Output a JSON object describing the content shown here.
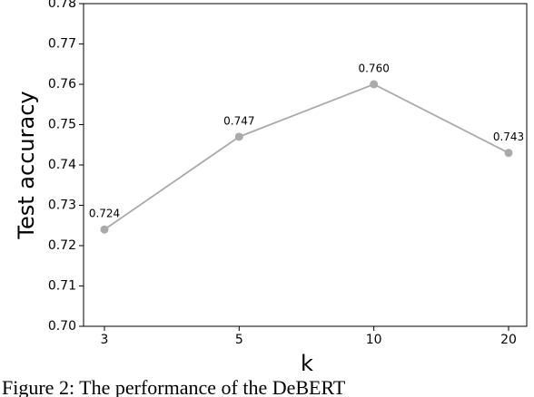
{
  "chart_data": {
    "type": "line",
    "y_label": "Test accuracy",
    "x_label": "k",
    "caption": "Figure 2: The performance of the DeBERT",
    "categories": [
      "3",
      "5",
      "10",
      "20"
    ],
    "values": [
      0.724,
      0.747,
      0.76,
      0.743
    ],
    "value_labels": [
      "0.724",
      "0.747",
      "0.760",
      "0.743"
    ],
    "color": "#aaaaaa",
    "ylim": [
      0.7,
      0.78
    ],
    "yticks": [
      {
        "value": 0.7,
        "label": "0.70"
      },
      0.71,
      0.72,
      0.73,
      0.74,
      0.75,
      0.76,
      0.77,
      0.78
    ]
  }
}
